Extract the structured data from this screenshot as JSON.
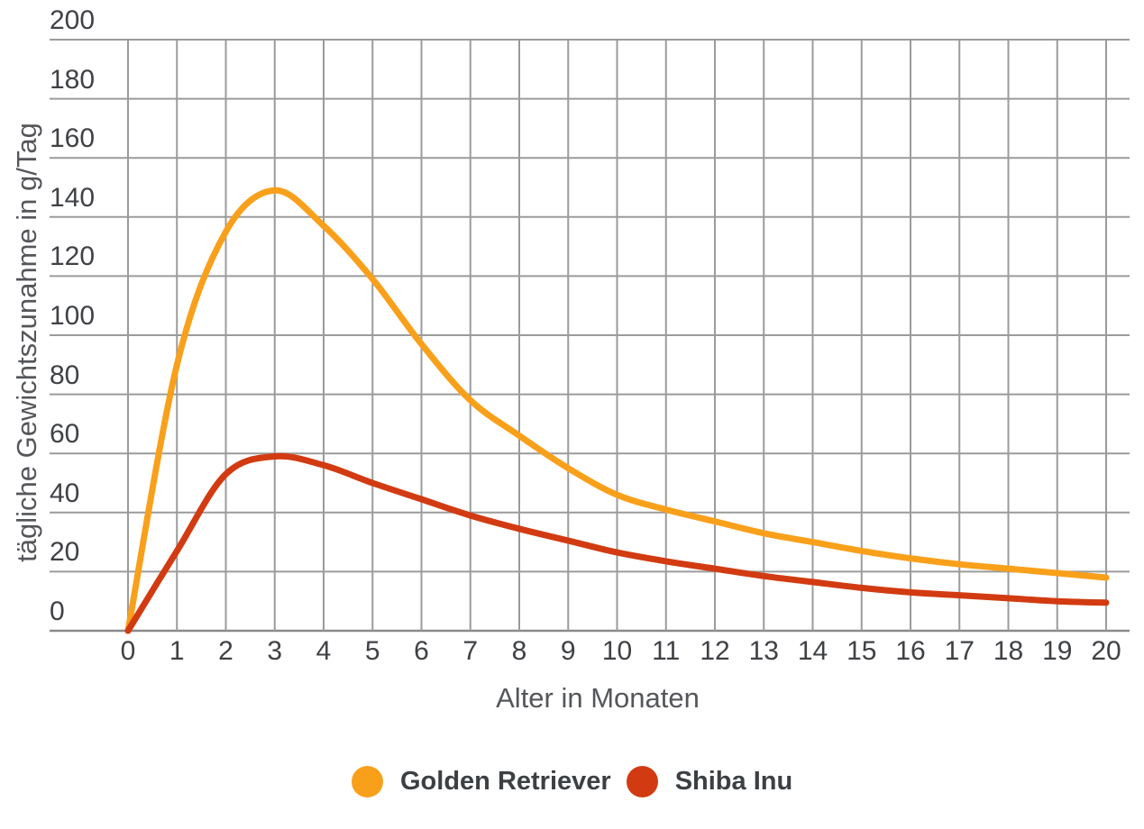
{
  "chart_data": {
    "type": "line",
    "title": "",
    "xlabel": "Alter in Monaten",
    "ylabel": "tägliche Gewichtszunahme in g/Tag",
    "x": [
      0,
      1,
      2,
      3,
      4,
      5,
      6,
      7,
      8,
      9,
      10,
      11,
      12,
      13,
      14,
      15,
      16,
      17,
      18,
      19,
      20
    ],
    "series": [
      {
        "name": "Golden Retriever",
        "color": "#F9A01B",
        "values": [
          0,
          90,
          135,
          149,
          137,
          119,
          97,
          78,
          66,
          55,
          46,
          41,
          37,
          33,
          30,
          27,
          24.5,
          22.5,
          21,
          19.5,
          18
        ]
      },
      {
        "name": "Shiba Inu",
        "color": "#D23B12",
        "values": [
          0,
          27,
          53,
          59,
          56,
          50,
          44.5,
          39,
          34.5,
          30.5,
          26.5,
          23.5,
          21,
          18.5,
          16.5,
          14.5,
          13,
          12,
          11,
          10,
          9.5
        ]
      }
    ],
    "xlim": [
      0,
      20
    ],
    "ylim": [
      0,
      200
    ],
    "x_ticks": [
      0,
      1,
      2,
      3,
      4,
      5,
      6,
      7,
      8,
      9,
      10,
      11,
      12,
      13,
      14,
      15,
      16,
      17,
      18,
      19,
      20
    ],
    "y_ticks": [
      0,
      20,
      40,
      60,
      80,
      100,
      120,
      140,
      160,
      180,
      200
    ],
    "grid": true,
    "legend_position": "bottom",
    "peak_annotation": ""
  },
  "styles": {
    "background": "#ffffff",
    "grid_color": "#9b9b9b",
    "axis_line_color": "#8a8a8a",
    "tick_text_color": "#3f4145",
    "axis_title_color": "#54565a",
    "legend_text_color": "#3c4043",
    "line_width": 7
  }
}
